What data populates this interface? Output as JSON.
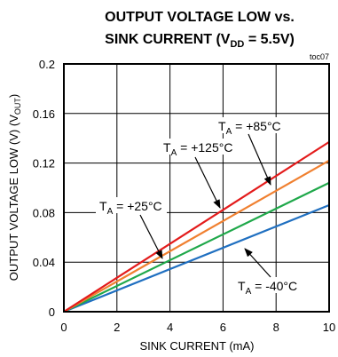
{
  "chart_data": {
    "type": "line",
    "title": {
      "line1": "OUTPUT VOLTAGE LOW vs.",
      "line2_prefix": "SINK CURRENT (V",
      "line2_sub": "DD",
      "line2_suffix": " = 5.5V)"
    },
    "figure_id": "toc07",
    "xlabel": "SINK CURRENT (mA)",
    "ylabel": {
      "prefix": "OUTPUT VOLTAGE LOW (V) (V",
      "sub": "OUT",
      "suffix": ")"
    },
    "xlim": [
      0,
      10
    ],
    "ylim": [
      0,
      0.2
    ],
    "x_ticks": [
      "0",
      "2",
      "4",
      "6",
      "8",
      "10"
    ],
    "y_ticks": [
      "0",
      "0.04",
      "0.08",
      "0.12",
      "0.16",
      "0.2"
    ],
    "grid": true,
    "series": [
      {
        "name": "T_A = -40°C",
        "label_prefix": "T",
        "label_sub": "A",
        "label_suffix": " = -40°C",
        "color": "#1f6fc0",
        "x": [
          0,
          10
        ],
        "y": [
          0,
          0.086
        ]
      },
      {
        "name": "T_A = +25°C",
        "label_prefix": "T",
        "label_sub": "A",
        "label_suffix": " = +25°C",
        "color": "#1fa84a",
        "x": [
          0,
          10
        ],
        "y": [
          0,
          0.104
        ]
      },
      {
        "name": "T_A = +125°C",
        "label_prefix": "T",
        "label_sub": "A",
        "label_suffix": " = +125°C",
        "color": "#f08030",
        "x": [
          0,
          10
        ],
        "y": [
          0,
          0.122
        ]
      },
      {
        "name": "T_A = +85°C",
        "label_prefix": "T",
        "label_sub": "A",
        "label_suffix": " = +85°C",
        "color": "#e31b1b",
        "x": [
          0,
          10
        ],
        "y": [
          0,
          0.137
        ]
      }
    ]
  }
}
